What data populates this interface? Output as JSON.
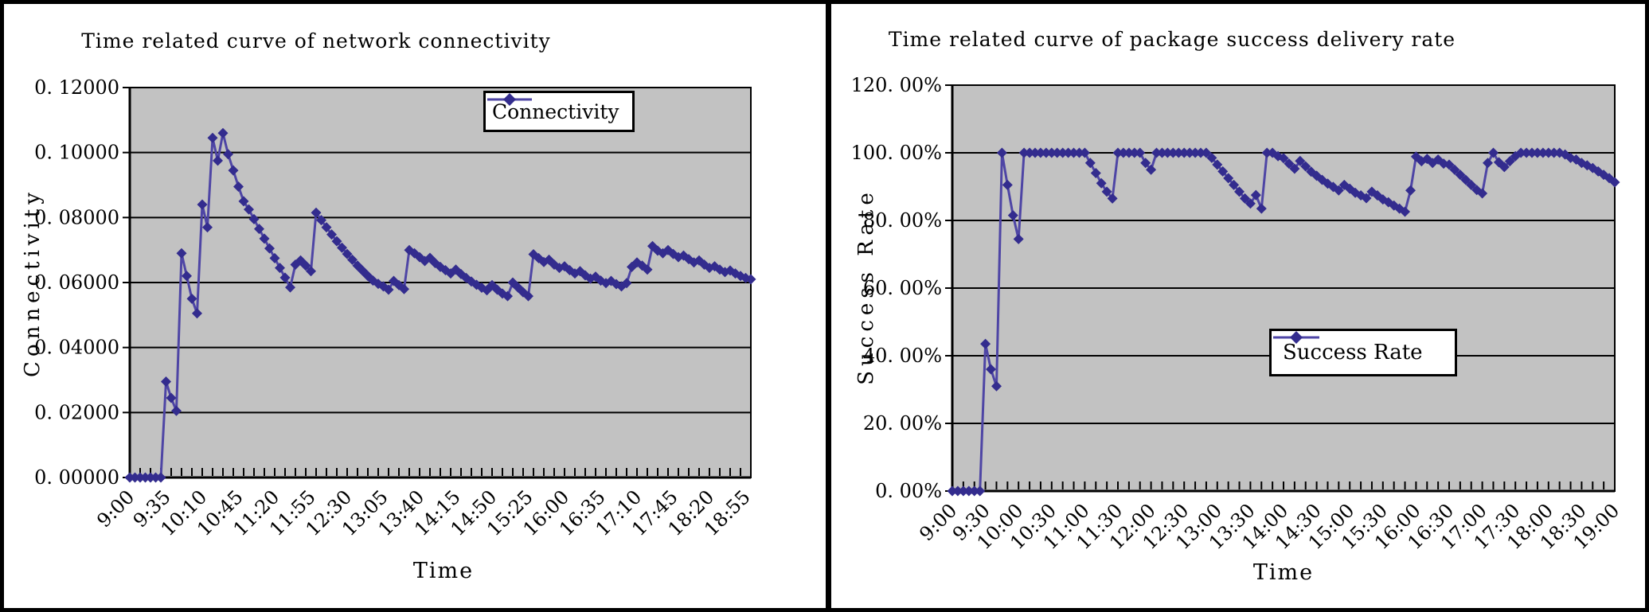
{
  "colors": {
    "line": "#4e45a5",
    "marker": "#332c8e",
    "plot_bg": "#c2c2c2",
    "grid": "#000000",
    "legend_bg": "#ffffff",
    "legend_border": "#000000",
    "text": "#000000",
    "page_bg": "#ffffff"
  },
  "chart_data": [
    {
      "type": "line",
      "title": "Time related curve of network connectivity",
      "xlabel": "Time",
      "ylabel": "Connectivity",
      "legend": "Connectivity",
      "legend_position": "top-right-inside",
      "grid": true,
      "ylim": [
        0,
        0.12
      ],
      "y_tick_labels": [
        "0. 00000",
        "0. 02000",
        "0. 04000",
        "0. 06000",
        "0. 08000",
        "0. 10000",
        "0. 12000"
      ],
      "x_start": "9:00",
      "x_end": "19:00",
      "x_interval_minutes": 5,
      "x_tick_labels": [
        "9:00",
        "9:35",
        "10:10",
        "10:45",
        "11:20",
        "11:55",
        "12:30",
        "13:05",
        "13:40",
        "14:15",
        "14:50",
        "15:25",
        "16:00",
        "16:35",
        "17:10",
        "17:45",
        "18:20",
        "18:55"
      ],
      "values": [
        0,
        0,
        0,
        0,
        0,
        0,
        0,
        0.0295,
        0.0245,
        0.0205,
        0.069,
        0.062,
        0.055,
        0.0505,
        0.084,
        0.077,
        0.1045,
        0.0975,
        0.106,
        0.0995,
        0.0945,
        0.0895,
        0.085,
        0.0825,
        0.0795,
        0.0765,
        0.0735,
        0.0705,
        0.0675,
        0.0645,
        0.0615,
        0.0585,
        0.0655,
        0.0668,
        0.0652,
        0.0635,
        0.0815,
        0.0792,
        0.077,
        0.0748,
        0.0727,
        0.0707,
        0.0688,
        0.067,
        0.0652,
        0.0636,
        0.062,
        0.0606,
        0.0596,
        0.0588,
        0.0578,
        0.0605,
        0.0592,
        0.058,
        0.07,
        0.069,
        0.0678,
        0.0666,
        0.0676,
        0.066,
        0.0648,
        0.0638,
        0.0628,
        0.064,
        0.0626,
        0.0614,
        0.0603,
        0.0593,
        0.0584,
        0.0576,
        0.0592,
        0.0578,
        0.0566,
        0.0558,
        0.06,
        0.0585,
        0.057,
        0.0558,
        0.0687,
        0.0675,
        0.0663,
        0.067,
        0.0655,
        0.0645,
        0.065,
        0.0638,
        0.0628,
        0.0635,
        0.0622,
        0.0612,
        0.0618,
        0.0606,
        0.0598,
        0.0605,
        0.0595,
        0.0588,
        0.0598,
        0.0648,
        0.0662,
        0.0652,
        0.064,
        0.0712,
        0.0698,
        0.069,
        0.07,
        0.0688,
        0.0678,
        0.0683,
        0.0672,
        0.0662,
        0.0668,
        0.0655,
        0.0645,
        0.065,
        0.064,
        0.0632,
        0.0637,
        0.0628,
        0.062,
        0.0614,
        0.061
      ]
    },
    {
      "type": "line",
      "title": "Time related curve of package success delivery rate",
      "xlabel": "Time",
      "ylabel": "Success Rate",
      "legend": "Success Rate",
      "legend_position": "center-right-inside",
      "grid": true,
      "ylim": [
        0,
        120
      ],
      "y_tick_labels": [
        "0. 00%",
        "20. 00%",
        "40. 00%",
        "60. 00%",
        "80. 00%",
        "100. 00%",
        "120. 00%"
      ],
      "x_start": "9:00",
      "x_end": "19:00",
      "x_interval_minutes": 5,
      "x_tick_labels": [
        "9:00",
        "9:30",
        "10:00",
        "10:30",
        "11:00",
        "11:30",
        "12:00",
        "12:30",
        "13:00",
        "13:30",
        "14:00",
        "14:30",
        "15:00",
        "15:30",
        "16:00",
        "16:30",
        "17:00",
        "17:30",
        "18:00",
        "18:30",
        "19:00"
      ],
      "values": [
        0,
        0,
        0,
        0,
        0,
        0,
        43.5,
        36,
        31,
        100,
        90.5,
        81.5,
        74.5,
        100,
        100,
        100,
        100,
        100,
        100,
        100,
        100,
        100,
        100,
        100,
        100,
        97,
        94,
        91,
        88.5,
        86.5,
        100,
        100,
        100,
        100,
        100,
        97,
        95,
        100,
        100,
        100,
        100,
        100,
        100,
        100,
        100,
        100,
        100,
        98.5,
        96.5,
        94.5,
        92.5,
        90.5,
        88.5,
        86.5,
        85,
        87.5,
        83.5,
        100,
        100,
        99,
        98.4,
        96.8,
        95.3,
        97.6,
        96,
        94.4,
        93.2,
        92,
        90.9,
        89.9,
        88.9,
        90.5,
        89.4,
        88.2,
        87.4,
        86.6,
        88.5,
        87.4,
        86.2,
        85.4,
        84.4,
        83.5,
        82.6,
        88.9,
        98.9,
        97.5,
        98.2,
        97,
        98,
        96.8,
        96.5,
        95,
        93.5,
        92,
        90.5,
        89,
        88,
        97,
        100,
        97.2,
        95.8,
        97.5,
        99,
        100,
        100,
        100,
        100,
        100,
        100,
        100,
        100,
        99.5,
        98.5,
        98,
        97,
        96.3,
        95.5,
        94.5,
        93.5,
        92.5,
        91.3
      ]
    }
  ]
}
